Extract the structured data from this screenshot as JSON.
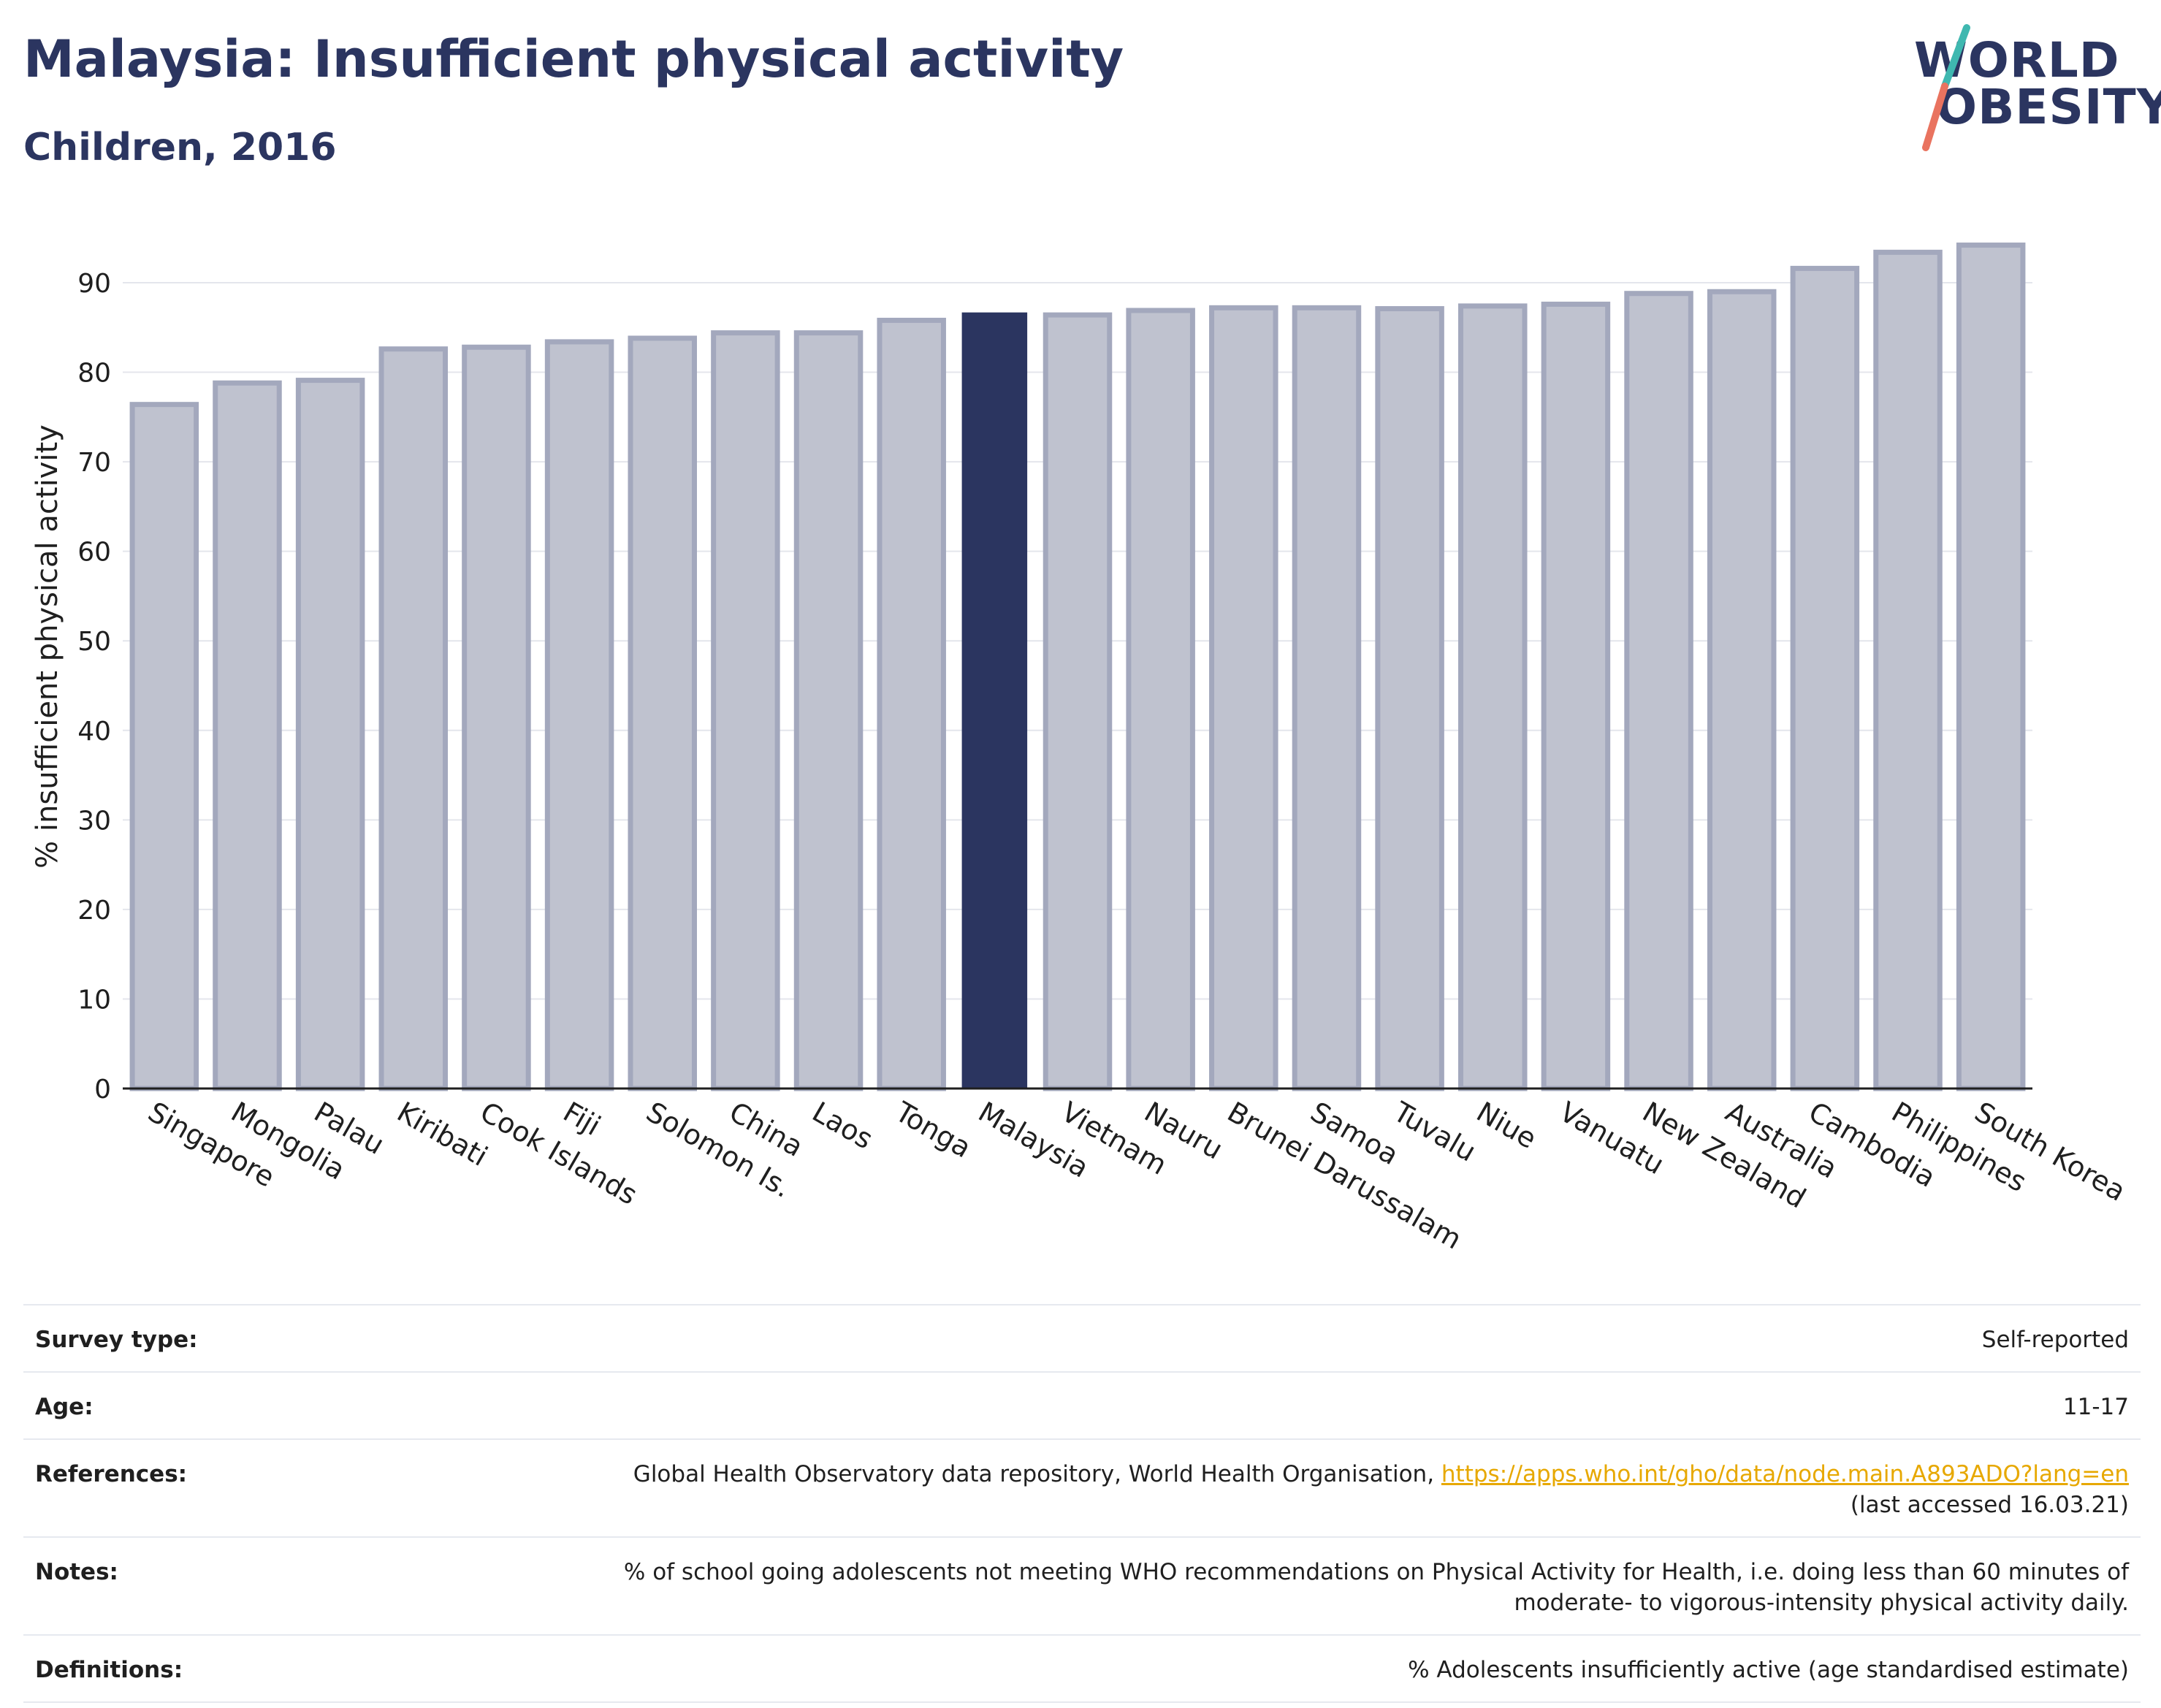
{
  "header": {
    "title": "Malaysia: Insufficient physical activity",
    "subtitle": "Children, 2016"
  },
  "logo": {
    "line1": "WORLD",
    "line2": "OBESITY",
    "colors": {
      "text": "#2b3560",
      "slash_teal": "#3fb8b0",
      "slash_coral": "#e9735f"
    }
  },
  "chart_data": {
    "type": "bar",
    "title": "Malaysia: Insufficient physical activity",
    "subtitle": "Children, 2016",
    "xlabel": "",
    "ylabel": "% insufficient physical activity",
    "ylim": [
      0,
      95
    ],
    "yticks": [
      0,
      10,
      20,
      30,
      40,
      50,
      60,
      70,
      80,
      90
    ],
    "grid": true,
    "highlight": "Malaysia",
    "colors": {
      "bar": "#bfc2cf",
      "bar_border": "#a3a8bd",
      "highlight": "#2b3560",
      "grid": "#e4e6ec"
    },
    "categories": [
      "Singapore",
      "Mongolia",
      "Palau",
      "Kiribati",
      "Cook Islands",
      "Fiji",
      "Solomon Is.",
      "China",
      "Laos",
      "Tonga",
      "Malaysia",
      "Vietnam",
      "Nauru",
      "Brunei Darussalam",
      "Samoa",
      "Tuvalu",
      "Niue",
      "Vanuatu",
      "New Zealand",
      "Australia",
      "Cambodia",
      "Philippines",
      "South Korea"
    ],
    "values": [
      76.4,
      78.8,
      79.1,
      82.6,
      82.8,
      83.4,
      83.8,
      84.4,
      84.4,
      85.8,
      86.6,
      86.4,
      86.9,
      87.2,
      87.2,
      87.1,
      87.4,
      87.6,
      88.8,
      89.0,
      91.6,
      93.4,
      94.2
    ]
  },
  "info": {
    "survey_type": {
      "label": "Survey type:",
      "value": "Self-reported"
    },
    "age": {
      "label": "Age:",
      "value": "11-17"
    },
    "references": {
      "label": "References:",
      "text": "Global Health Observatory data repository, World Health Organisation, ",
      "link": "https://apps.who.int/gho/data/node.main.A893ADO?lang=en",
      "accessed": "(last accessed 16.03.21)"
    },
    "notes": {
      "label": "Notes:",
      "line1": "% of school going adolescents not meeting WHO recommendations on Physical Activity for Health, i.e. doing less than 60 minutes of",
      "line2": "moderate- to vigorous-intensity physical activity daily."
    },
    "definitions": {
      "label": "Definitions:",
      "value": "% Adolescents insufficiently active (age standardised estimate)"
    }
  }
}
